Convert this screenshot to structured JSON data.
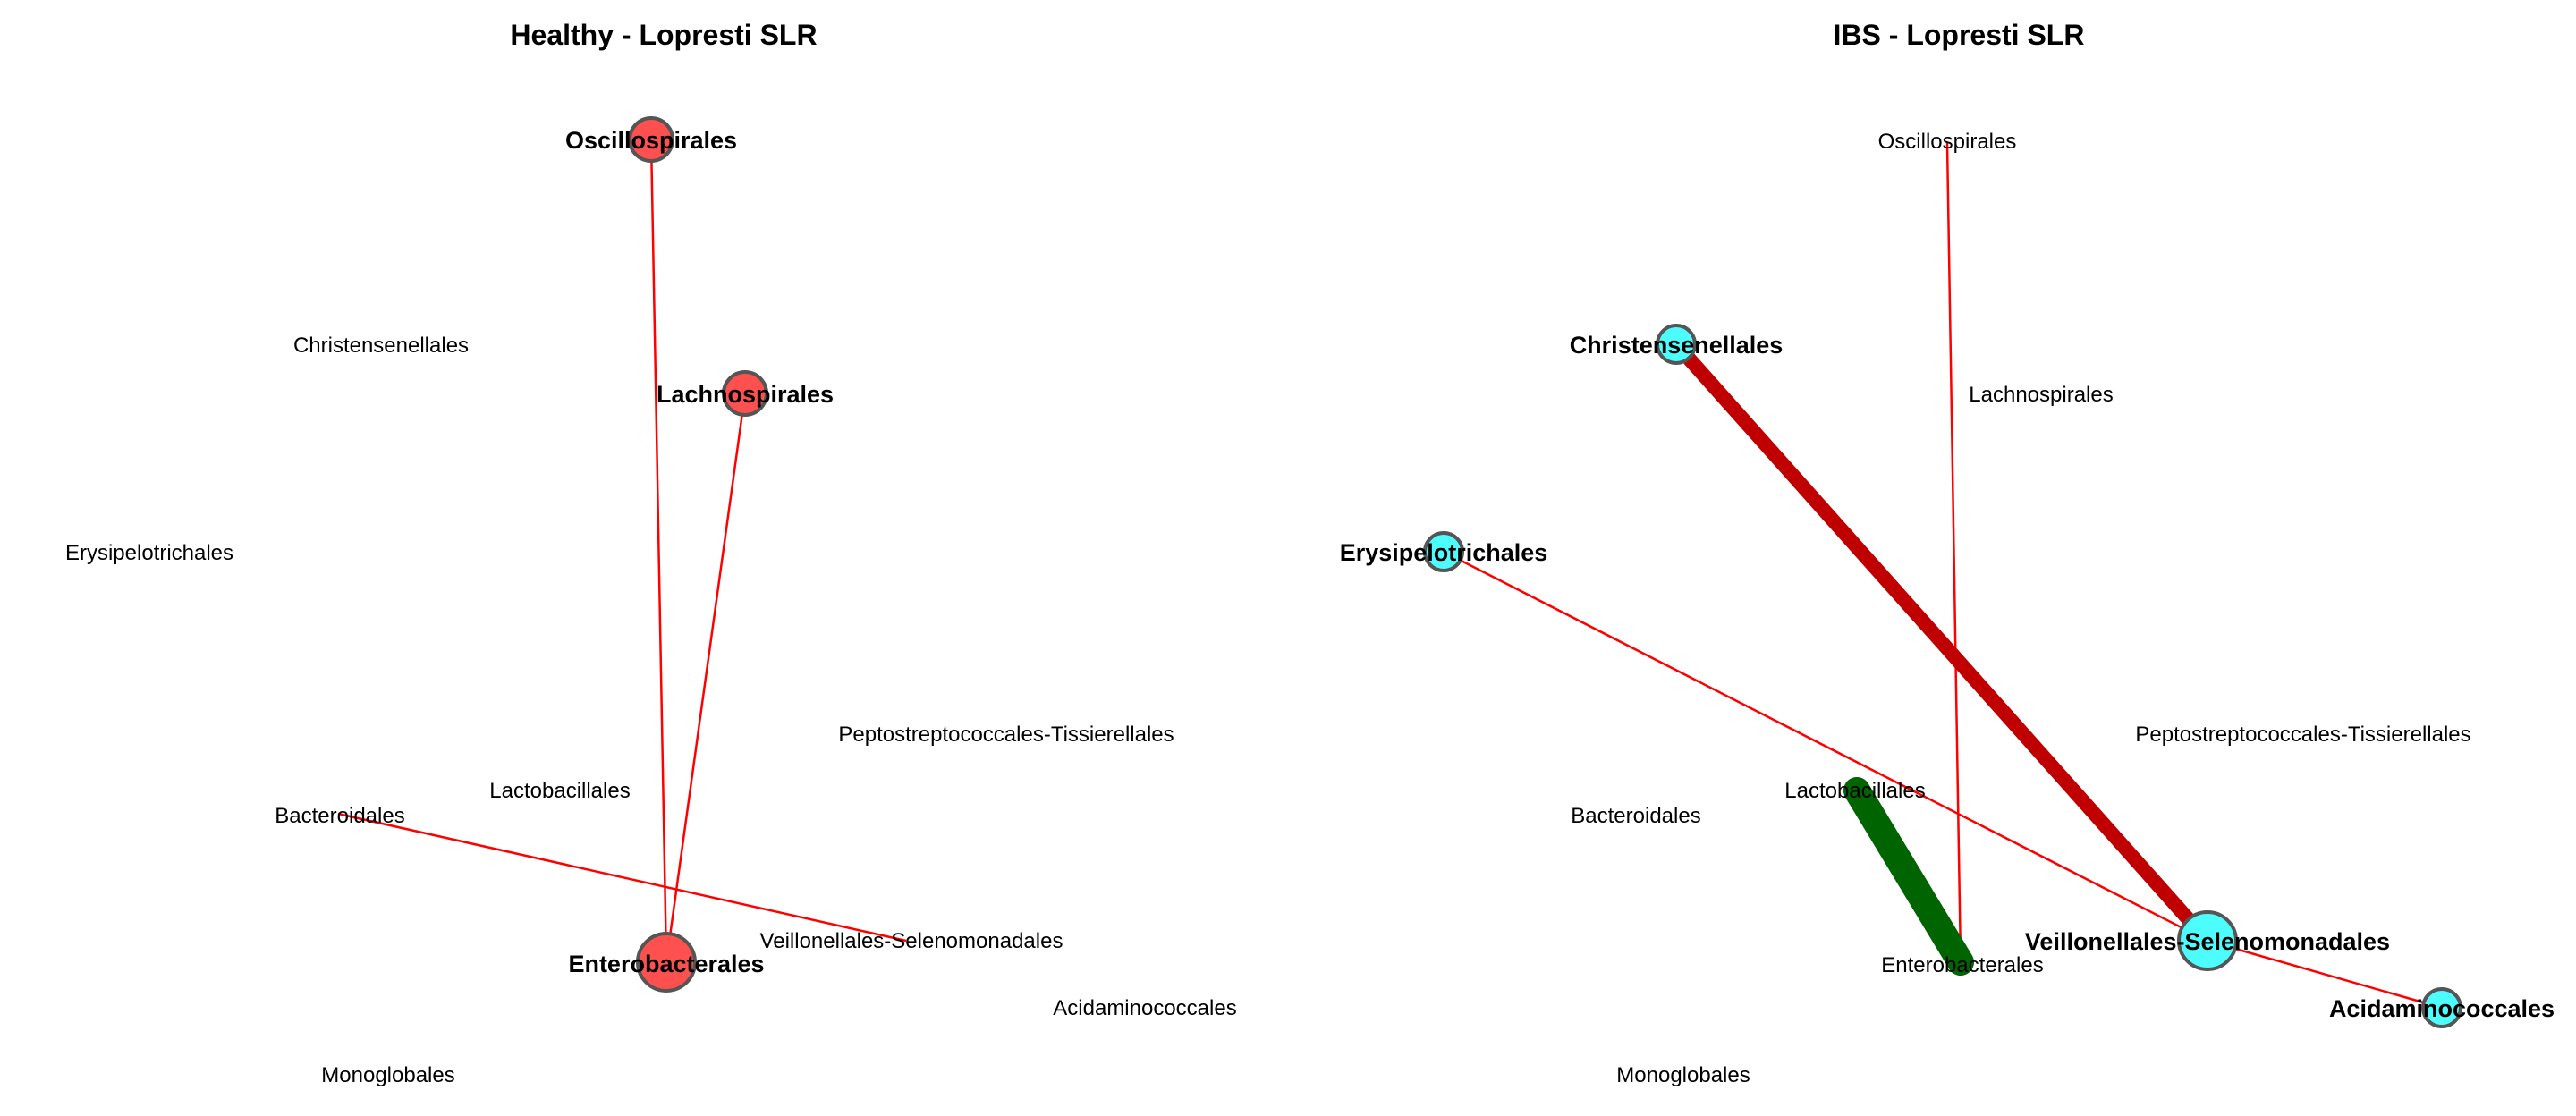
{
  "panels": [
    {
      "title": "Healthy - Lopresti SLR",
      "node_color": "#ff5050",
      "nodes": [
        {
          "id": "Oscillospirales",
          "label": "Oscillospirales",
          "highlighted": true
        },
        {
          "id": "Christensenellales",
          "label": "Christensenellales",
          "highlighted": false
        },
        {
          "id": "Lachnospirales",
          "label": "Lachnospirales",
          "highlighted": true
        },
        {
          "id": "Erysipelotrichales",
          "label": "Erysipelotrichales",
          "highlighted": false
        },
        {
          "id": "Peptostreptococcales-Tissierellales",
          "label": "Peptostreptococcales-Tissierellales",
          "highlighted": false
        },
        {
          "id": "Lactobacillales",
          "label": "Lactobacillales",
          "highlighted": false
        },
        {
          "id": "Bacteroidales",
          "label": "Bacteroidales",
          "highlighted": false
        },
        {
          "id": "Veillonellales-Selenomonadales",
          "label": "Veillonellales-Selenomonadales",
          "highlighted": false
        },
        {
          "id": "Enterobacterales",
          "label": "Enterobacterales",
          "highlighted": true
        },
        {
          "id": "Acidaminococcales",
          "label": "Acidaminococcales",
          "highlighted": false
        },
        {
          "id": "Monoglobales",
          "label": "Monoglobales",
          "highlighted": false
        }
      ],
      "edges": [
        {
          "source": "Oscillospirales",
          "target": "Enterobacterales",
          "color": "#ff0000",
          "weight": "thin"
        },
        {
          "source": "Lachnospirales",
          "target": "Enterobacterales",
          "color": "#ff0000",
          "weight": "thin"
        },
        {
          "source": "Bacteroidales",
          "target": "Veillonellales-Selenomonadales",
          "color": "#ff0000",
          "weight": "thin"
        }
      ]
    },
    {
      "title": "IBS - Lopresti SLR",
      "node_color": "#4dfcfc",
      "nodes": [
        {
          "id": "Oscillospirales",
          "label": "Oscillospirales",
          "highlighted": false
        },
        {
          "id": "Christensenellales",
          "label": "Christensenellales",
          "highlighted": true
        },
        {
          "id": "Lachnospirales",
          "label": "Lachnospirales",
          "highlighted": false
        },
        {
          "id": "Erysipelotrichales",
          "label": "Erysipelotrichales",
          "highlighted": true
        },
        {
          "id": "Peptostreptococcales-Tissierellales",
          "label": "Peptostreptococcales-Tissierellales",
          "highlighted": false
        },
        {
          "id": "Lactobacillales",
          "label": "Lactobacillales",
          "highlighted": false
        },
        {
          "id": "Bacteroidales",
          "label": "Bacteroidales",
          "highlighted": false
        },
        {
          "id": "Veillonellales-Selenomonadales",
          "label": "Veillonellales-Selenomonadales",
          "highlighted": true
        },
        {
          "id": "Enterobacterales",
          "label": "Enterobacterales",
          "highlighted": false
        },
        {
          "id": "Acidaminococcales",
          "label": "Acidaminococcales",
          "highlighted": true
        },
        {
          "id": "Monoglobales",
          "label": "Monoglobales",
          "highlighted": false
        }
      ],
      "edges": [
        {
          "source": "Oscillospirales",
          "target": "Enterobacterales",
          "color": "#ff0000",
          "weight": "thin"
        },
        {
          "source": "Christensenellales",
          "target": "Veillonellales-Selenomonadales",
          "color": "#c00000",
          "weight": "thick"
        },
        {
          "source": "Erysipelotrichales",
          "target": "Veillonellales-Selenomonadales",
          "color": "#ff0000",
          "weight": "thin"
        },
        {
          "source": "Veillonellales-Selenomonadales",
          "target": "Acidaminococcales",
          "color": "#ff0000",
          "weight": "thin"
        },
        {
          "source": "Lactobacillales",
          "target": "Enterobacterales",
          "color": "#006400",
          "weight": "very-thick"
        }
      ]
    }
  ]
}
